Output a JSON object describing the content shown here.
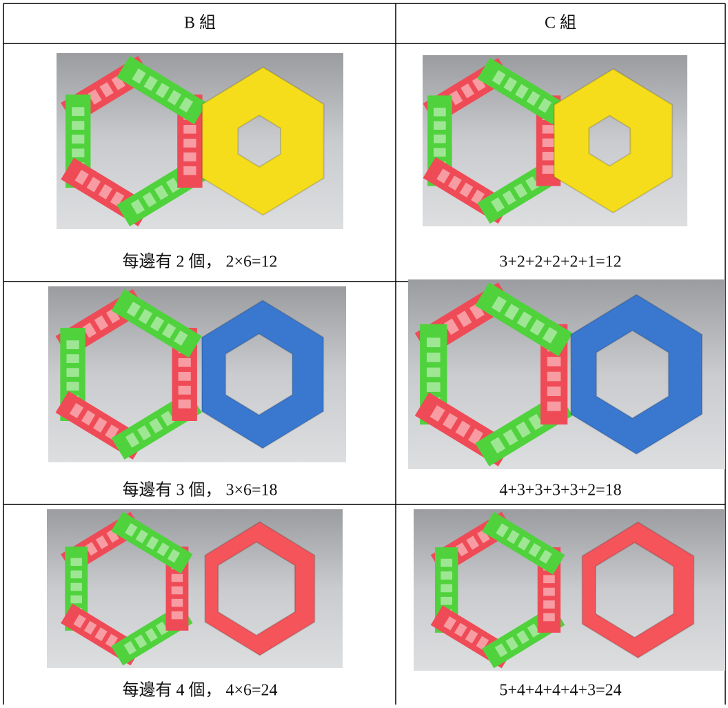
{
  "table": {
    "header": [
      "B 組",
      "C 組"
    ],
    "rows": [
      [
        "每邊有 2 個， 2×6=12",
        "3+2+2+2+2+1=12"
      ],
      [
        "每邊有 3 個， 3×6=18",
        "4+3+3+3+3+2=18"
      ],
      [
        "每邊有 4 個， 4×6=24",
        "5+4+4+4+4+3=24"
      ]
    ]
  }
}
